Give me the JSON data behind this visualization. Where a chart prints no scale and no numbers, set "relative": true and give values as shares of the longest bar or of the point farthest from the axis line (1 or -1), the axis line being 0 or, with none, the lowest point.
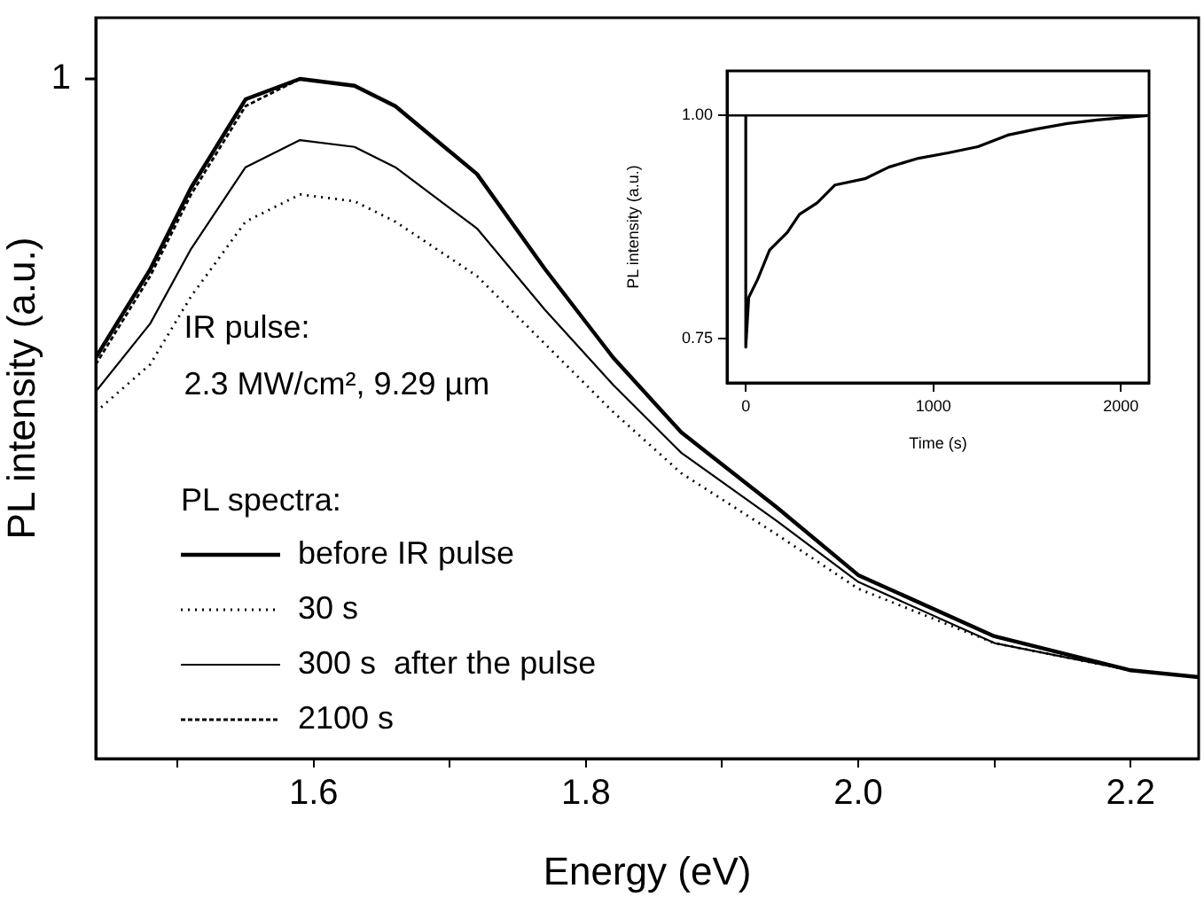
{
  "chart_data": [
    {
      "type": "line",
      "xlabel": "Energy (eV)",
      "ylabel": "PL intensity (a.u.)",
      "relative": true,
      "legend": "bottom left",
      "legend_title": "PL spectra:",
      "xlim": [
        1.44,
        2.25
      ],
      "xticks": [
        {
          "value": 1.5,
          "label": null
        },
        1.6,
        {
          "value": 1.7,
          "label": null
        },
        1.8,
        {
          "value": 1.9,
          "label": null
        },
        {
          "value": 2.0,
          "label": "2.0"
        },
        {
          "value": 2.1,
          "label": null
        },
        2.2
      ],
      "x": [
        1.44,
        1.48,
        1.51,
        1.55,
        1.59,
        1.63,
        1.66,
        1.72,
        1.77,
        1.82,
        1.87,
        1.94,
        2.0,
        2.1,
        2.2,
        2.25
      ],
      "series": [
        {
          "name": "before IR pulse",
          "color": "#000000",
          "line_style": "solid",
          "values": [
            0.59,
            0.72,
            0.84,
            0.97,
            1.0,
            0.99,
            0.96,
            0.86,
            0.72,
            0.59,
            0.48,
            0.37,
            0.27,
            0.18,
            0.13,
            0.12
          ]
        },
        {
          "name": "30 s",
          "color": "#000000",
          "line_style": "dotted",
          "values": [
            0.51,
            0.58,
            0.68,
            0.79,
            0.83,
            0.82,
            0.79,
            0.71,
            0.61,
            0.51,
            0.42,
            0.33,
            0.25,
            0.17,
            0.13,
            0.12
          ]
        },
        {
          "name": "300 s  after the pulse",
          "color": "#000000",
          "line_style": "solid",
          "values": [
            0.54,
            0.64,
            0.75,
            0.87,
            0.91,
            0.9,
            0.87,
            0.78,
            0.66,
            0.55,
            0.45,
            0.35,
            0.26,
            0.17,
            0.13,
            0.12
          ]
        },
        {
          "name": "2100 s",
          "color": "#000000",
          "line_style": "dashed",
          "values": [
            0.58,
            0.71,
            0.83,
            0.96,
            1.0,
            0.99,
            0.96,
            0.86,
            0.72,
            0.59,
            0.48,
            0.37,
            0.27,
            0.18,
            0.13,
            0.12
          ]
        }
      ],
      "annotations": [
        "1",
        "IR pulse:",
        "2.3 MW/cm², 9.29 µm"
      ]
    },
    {
      "type": "line",
      "xlabel": "Time (s)",
      "ylabel": "PL intensity (a.u.)",
      "xlim": [
        -100,
        2150
      ],
      "xticks": [
        0,
        1000,
        2000
      ],
      "ylim": [
        0.7,
        1.05
      ],
      "yticks": [
        0.75,
        {
          "value": 1.0,
          "label": "1.00"
        }
      ],
      "x": [
        0,
        0,
        16,
        63,
        127,
        222,
        286,
        381,
        476,
        635,
        762,
        921,
        1079,
        1238,
        1397,
        1556,
        1714,
        1873,
        2032,
        2143
      ],
      "series": [
        {
          "color": "#000000",
          "line_style": "solid",
          "values": [
            1.0,
            0.74,
            0.796,
            0.816,
            0.849,
            0.869,
            0.889,
            0.902,
            0.922,
            0.929,
            0.942,
            0.952,
            0.958,
            0.965,
            0.978,
            0.985,
            0.991,
            0.995,
            0.998,
            1.0
          ]
        }
      ],
      "ref_lines": [
        {
          "axis": "y",
          "value": 1.0
        }
      ]
    }
  ]
}
